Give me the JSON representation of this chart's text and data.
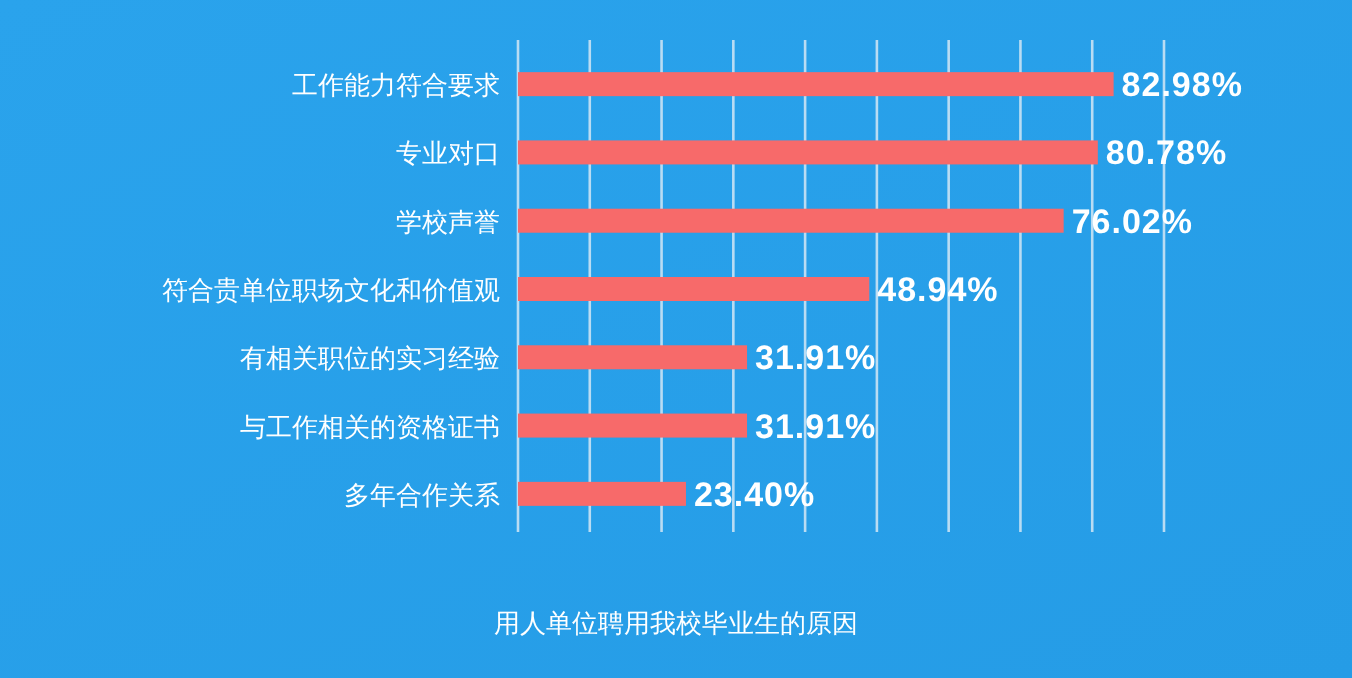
{
  "chart_data": {
    "type": "bar",
    "orientation": "horizontal",
    "title": "用人单位聘用我校毕业生的原因",
    "categories": [
      "工作能力符合要求",
      "专业对口",
      "学校声誉",
      "符合贵单位职场文化和价值观",
      "有相关职位的实习经验",
      "与工作相关的资格证书",
      "多年合作关系"
    ],
    "values": [
      82.98,
      80.78,
      76.02,
      48.94,
      31.91,
      31.91,
      23.4
    ],
    "value_labels": [
      "82.98%",
      "80.78%",
      "76.02%",
      "48.94%",
      "31.91%",
      "31.91%",
      "23.40%"
    ],
    "color": "#f76a6a",
    "xlim": [
      0,
      90
    ],
    "xticks": [
      {
        "value": 0,
        "label": null
      },
      {
        "value": 10,
        "label": null
      },
      {
        "value": 20,
        "label": null
      },
      {
        "value": 30,
        "label": null
      },
      {
        "value": 40,
        "label": null
      },
      {
        "value": 50,
        "label": null
      },
      {
        "value": 60,
        "label": null
      },
      {
        "value": 70,
        "label": null
      },
      {
        "value": 80,
        "label": null
      },
      {
        "value": 90,
        "label": null
      }
    ],
    "grid": "x",
    "tick_labels": "y"
  }
}
